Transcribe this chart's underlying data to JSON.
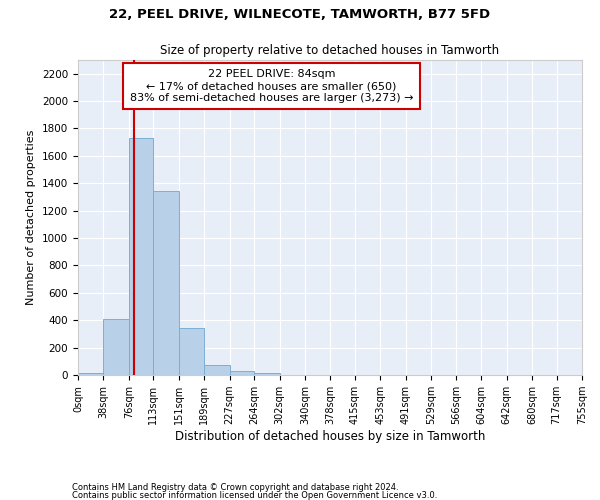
{
  "title1": "22, PEEL DRIVE, WILNECOTE, TAMWORTH, B77 5FD",
  "title2": "Size of property relative to detached houses in Tamworth",
  "xlabel": "Distribution of detached houses by size in Tamworth",
  "ylabel": "Number of detached properties",
  "footnote1": "Contains HM Land Registry data © Crown copyright and database right 2024.",
  "footnote2": "Contains public sector information licensed under the Open Government Licence v3.0.",
  "annotation_line1": "22 PEEL DRIVE: 84sqm",
  "annotation_line2": "← 17% of detached houses are smaller (650)",
  "annotation_line3": "83% of semi-detached houses are larger (3,273) →",
  "property_size": 84,
  "bin_edges": [
    0,
    38,
    76,
    113,
    151,
    189,
    227,
    264,
    302,
    340,
    378,
    415,
    453,
    491,
    529,
    566,
    604,
    642,
    680,
    717,
    755
  ],
  "bin_counts": [
    15,
    410,
    1730,
    1345,
    340,
    75,
    30,
    18,
    0,
    0,
    0,
    0,
    0,
    0,
    0,
    0,
    0,
    0,
    0,
    0
  ],
  "bar_color": "#b8d0e8",
  "bar_edge_color": "#7aafd4",
  "vline_color": "#cc0000",
  "annotation_box_color": "#cc0000",
  "background_color": "#e8eef8",
  "ylim": [
    0,
    2300
  ],
  "yticks": [
    0,
    200,
    400,
    600,
    800,
    1000,
    1200,
    1400,
    1600,
    1800,
    2000,
    2200
  ]
}
